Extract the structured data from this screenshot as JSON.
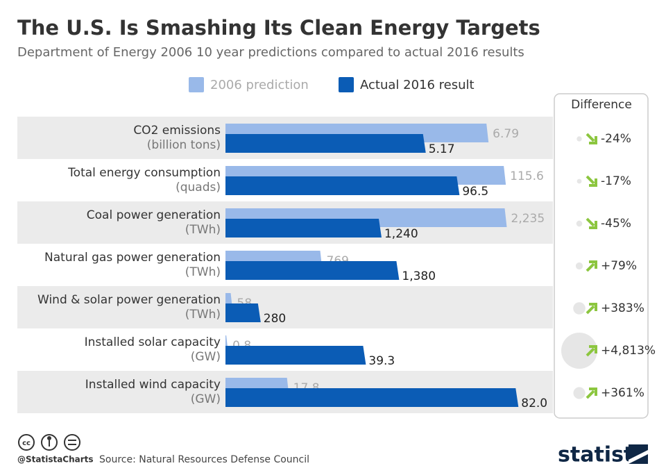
{
  "chart_data": {
    "type": "bar",
    "title": "The U.S. Is Smashing Its Clean Energy Targets",
    "subtitle": "Department of Energy 2006 10 year predictions compared to actual 2016 results",
    "categories": [
      "CO2 emissions",
      "Total energy consumption",
      "Coal power generation",
      "Natural gas power generation",
      "Wind & solar power generation",
      "Installed solar capacity",
      "Installed wind capacity"
    ],
    "units": [
      "(billion tons)",
      "(quads)",
      "(TWh)",
      "(TWh)",
      "(TWh)",
      "(GW)",
      "(GW)"
    ],
    "row_xlim": [
      [
        0,
        7.7
      ],
      [
        0,
        123
      ],
      [
        0,
        2370
      ],
      [
        0,
        2370
      ],
      [
        0,
        2370
      ],
      [
        0,
        83.5
      ],
      [
        0,
        83.5
      ]
    ],
    "series": [
      {
        "name": "2006 prediction",
        "color": "#99b9e9",
        "values": [
          6.79,
          115.6,
          2235,
          769,
          58,
          0.8,
          17.8
        ],
        "value_labels": [
          "6.79",
          "115.6",
          "2,235",
          "769",
          "58",
          "0.8",
          "17.8"
        ]
      },
      {
        "name": "Actual 2016 result",
        "color": "#0b5cb5",
        "values": [
          5.17,
          96.5,
          1240,
          1380,
          280,
          39.3,
          82
        ],
        "value_labels": [
          "5.17",
          "96.5",
          "1,240",
          "1,380",
          "280",
          "39.3",
          "82.0"
        ]
      }
    ],
    "difference": {
      "title": "Difference",
      "color": "#8cc63f",
      "values": [
        -24,
        -17,
        -45,
        79,
        383,
        4813,
        361
      ],
      "value_labels": [
        "-24%",
        "-17%",
        "-45%",
        "+79%",
        "+383%",
        "+4,813%",
        "+361%"
      ]
    },
    "handle": "@StatistaCharts",
    "source": "Source: Natural Resources Defense Council",
    "brand": "statista"
  }
}
